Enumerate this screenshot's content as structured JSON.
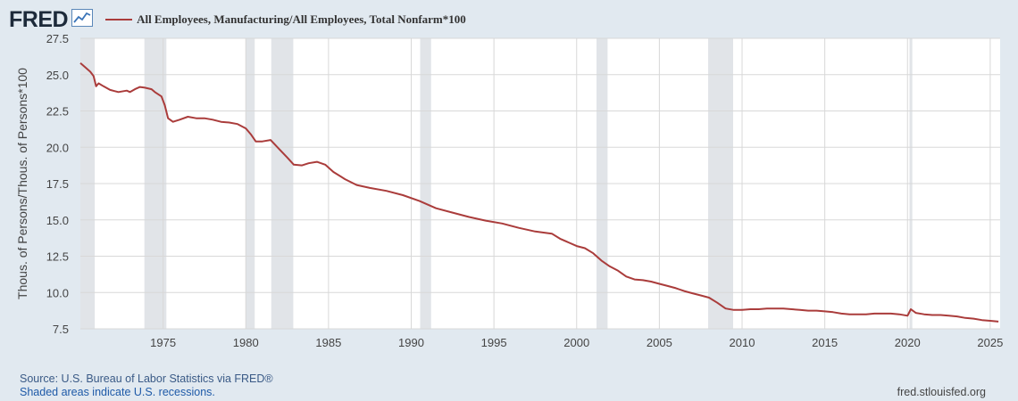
{
  "header": {
    "logo": "FRED",
    "legend_label": "All Employees, Manufacturing/All Employees, Total Nonfarm*100",
    "series_color": "#aa3c3b"
  },
  "footer": {
    "source": "Source: U.S. Bureau of Labor Statistics via FRED®",
    "recession_note": "Shaded areas indicate U.S. recessions.",
    "site": "fred.stlouisfed.org"
  },
  "chart_data": {
    "type": "line",
    "title": "All Employees, Manufacturing/All Employees, Total Nonfarm*100",
    "ylabel": "Thous. of Persons/Thous. of Persons*100",
    "xlabel": "",
    "xlim": [
      1970.0,
      2025.6
    ],
    "ylim": [
      7.5,
      27.5
    ],
    "xticks": [
      1975,
      1980,
      1985,
      1990,
      1995,
      2000,
      2005,
      2010,
      2015,
      2020,
      2025
    ],
    "yticks": [
      "7.5",
      "10.0",
      "12.5",
      "15.0",
      "17.5",
      "20.0",
      "22.5",
      "25.0",
      "27.5"
    ],
    "grid": true,
    "recessions": [
      [
        1970.0,
        1970.87
      ],
      [
        1973.87,
        1975.2
      ],
      [
        1980.0,
        1980.54
      ],
      [
        1981.54,
        1982.87
      ],
      [
        1990.54,
        1991.2
      ],
      [
        2001.2,
        2001.87
      ],
      [
        2007.95,
        2009.46
      ],
      [
        2020.12,
        2020.29
      ]
    ],
    "series": [
      {
        "name": "All Employees, Manufacturing/All Employees, Total Nonfarm*100",
        "color": "#aa3c3b",
        "points": [
          [
            1970.0,
            25.8
          ],
          [
            1970.3,
            25.5
          ],
          [
            1970.6,
            25.2
          ],
          [
            1970.8,
            24.9
          ],
          [
            1970.95,
            24.2
          ],
          [
            1971.1,
            24.4
          ],
          [
            1971.4,
            24.2
          ],
          [
            1971.8,
            23.95
          ],
          [
            1972.3,
            23.8
          ],
          [
            1972.8,
            23.9
          ],
          [
            1973.0,
            23.8
          ],
          [
            1973.3,
            24.0
          ],
          [
            1973.6,
            24.15
          ],
          [
            1973.9,
            24.1
          ],
          [
            1974.3,
            24.0
          ],
          [
            1974.5,
            23.8
          ],
          [
            1974.9,
            23.5
          ],
          [
            1975.1,
            22.9
          ],
          [
            1975.3,
            22.0
          ],
          [
            1975.6,
            21.75
          ],
          [
            1976.0,
            21.9
          ],
          [
            1976.5,
            22.1
          ],
          [
            1977.0,
            22.0
          ],
          [
            1977.5,
            22.0
          ],
          [
            1978.0,
            21.9
          ],
          [
            1978.5,
            21.75
          ],
          [
            1979.0,
            21.7
          ],
          [
            1979.5,
            21.6
          ],
          [
            1980.0,
            21.3
          ],
          [
            1980.3,
            20.9
          ],
          [
            1980.6,
            20.4
          ],
          [
            1981.0,
            20.4
          ],
          [
            1981.5,
            20.5
          ],
          [
            1982.0,
            19.9
          ],
          [
            1982.5,
            19.3
          ],
          [
            1982.9,
            18.8
          ],
          [
            1983.4,
            18.75
          ],
          [
            1983.8,
            18.9
          ],
          [
            1984.3,
            19.0
          ],
          [
            1984.8,
            18.8
          ],
          [
            1985.3,
            18.3
          ],
          [
            1986.0,
            17.8
          ],
          [
            1986.7,
            17.4
          ],
          [
            1987.5,
            17.2
          ],
          [
            1988.5,
            17.0
          ],
          [
            1989.5,
            16.7
          ],
          [
            1990.5,
            16.3
          ],
          [
            1991.5,
            15.8
          ],
          [
            1992.5,
            15.5
          ],
          [
            1993.5,
            15.2
          ],
          [
            1994.5,
            14.95
          ],
          [
            1995.5,
            14.75
          ],
          [
            1996.5,
            14.45
          ],
          [
            1997.5,
            14.2
          ],
          [
            1998.5,
            14.05
          ],
          [
            1999.0,
            13.7
          ],
          [
            1999.5,
            13.45
          ],
          [
            2000.0,
            13.2
          ],
          [
            2000.5,
            13.05
          ],
          [
            2001.0,
            12.7
          ],
          [
            2001.5,
            12.2
          ],
          [
            2002.0,
            11.8
          ],
          [
            2002.5,
            11.5
          ],
          [
            2003.0,
            11.1
          ],
          [
            2003.5,
            10.9
          ],
          [
            2004.0,
            10.85
          ],
          [
            2004.5,
            10.75
          ],
          [
            2005.0,
            10.6
          ],
          [
            2005.5,
            10.45
          ],
          [
            2006.0,
            10.3
          ],
          [
            2006.5,
            10.1
          ],
          [
            2007.0,
            9.95
          ],
          [
            2007.5,
            9.8
          ],
          [
            2008.0,
            9.65
          ],
          [
            2008.5,
            9.3
          ],
          [
            2009.0,
            8.9
          ],
          [
            2009.5,
            8.8
          ],
          [
            2010.0,
            8.8
          ],
          [
            2010.5,
            8.85
          ],
          [
            2011.0,
            8.85
          ],
          [
            2011.5,
            8.9
          ],
          [
            2012.0,
            8.9
          ],
          [
            2012.5,
            8.9
          ],
          [
            2013.0,
            8.85
          ],
          [
            2013.5,
            8.8
          ],
          [
            2014.0,
            8.75
          ],
          [
            2014.5,
            8.75
          ],
          [
            2015.0,
            8.7
          ],
          [
            2015.5,
            8.65
          ],
          [
            2016.0,
            8.55
          ],
          [
            2016.5,
            8.5
          ],
          [
            2017.0,
            8.5
          ],
          [
            2017.5,
            8.5
          ],
          [
            2018.0,
            8.55
          ],
          [
            2018.5,
            8.55
          ],
          [
            2019.0,
            8.55
          ],
          [
            2019.5,
            8.5
          ],
          [
            2020.0,
            8.4
          ],
          [
            2020.2,
            8.85
          ],
          [
            2020.5,
            8.6
          ],
          [
            2021.0,
            8.5
          ],
          [
            2021.5,
            8.45
          ],
          [
            2022.0,
            8.45
          ],
          [
            2022.5,
            8.4
          ],
          [
            2023.0,
            8.35
          ],
          [
            2023.5,
            8.25
          ],
          [
            2024.0,
            8.2
          ],
          [
            2024.5,
            8.1
          ],
          [
            2025.0,
            8.05
          ],
          [
            2025.5,
            8.0
          ]
        ]
      }
    ]
  }
}
